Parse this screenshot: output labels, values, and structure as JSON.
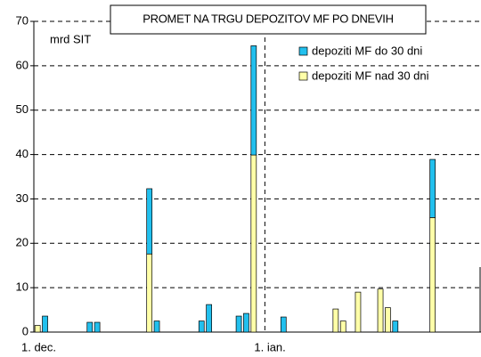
{
  "chart_data": {
    "type": "stacked_bar",
    "title": "PROMET NA TRGU DEPOZITOV MF PO DNEVIH",
    "y_label": "mrd SIT",
    "categories": [
      "1. dec.",
      null,
      null,
      null,
      null,
      null,
      null,
      null,
      null,
      null,
      null,
      null,
      null,
      null,
      null,
      null,
      null,
      null,
      null,
      null,
      null,
      null,
      null,
      null,
      null,
      null,
      null,
      null,
      null,
      null,
      null,
      "1. ian.",
      null,
      null,
      null,
      null,
      null,
      null,
      null,
      null,
      null,
      null,
      null,
      null,
      null,
      null,
      null,
      null,
      null,
      null,
      null,
      null,
      null,
      null,
      null,
      null,
      null,
      null,
      null,
      null
    ],
    "series": [
      {
        "name": "depoziti MF nad 30 dni",
        "color": "#ffffa8",
        "values": [
          1.5,
          null,
          null,
          null,
          null,
          null,
          null,
          null,
          null,
          null,
          null,
          null,
          null,
          null,
          null,
          17.6,
          null,
          null,
          null,
          null,
          null,
          null,
          null,
          null,
          null,
          null,
          null,
          null,
          null,
          39.9,
          null,
          null,
          null,
          null,
          null,
          null,
          null,
          null,
          null,
          null,
          5.2,
          2.5,
          null,
          9.0,
          null,
          null,
          9.7,
          5.5,
          null,
          null,
          null,
          null,
          null,
          25.8,
          null,
          null,
          null,
          null,
          null,
          null
        ]
      },
      {
        "name": "depoziti MF do 30 dni",
        "color": "#22c0ee",
        "values": [
          null,
          3.6,
          null,
          null,
          null,
          null,
          null,
          2.2,
          2.2,
          null,
          null,
          null,
          null,
          null,
          null,
          14.7,
          2.5,
          null,
          null,
          null,
          null,
          null,
          2.5,
          6.2,
          null,
          null,
          null,
          3.6,
          4.2,
          24.6,
          null,
          null,
          null,
          3.4,
          null,
          null,
          null,
          null,
          null,
          null,
          null,
          null,
          null,
          null,
          null,
          null,
          null,
          null,
          2.5,
          null,
          null,
          null,
          null,
          13.1,
          null,
          null,
          null,
          null,
          null,
          null
        ]
      }
    ],
    "ylim": [
      0,
      70
    ],
    "yticks": [
      0,
      10,
      20,
      30,
      40,
      50,
      60,
      70
    ],
    "grid": true
  }
}
